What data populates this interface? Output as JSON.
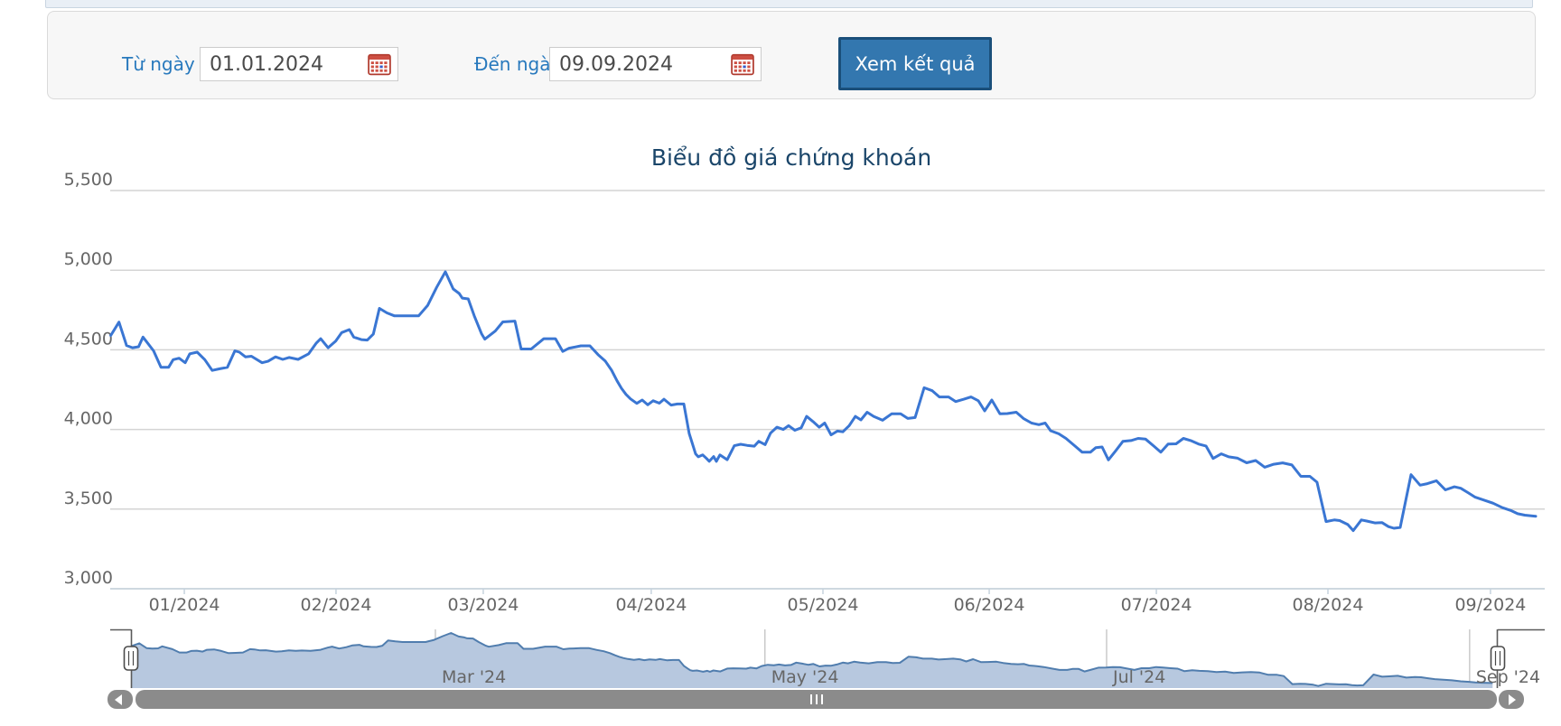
{
  "form": {
    "from_label": "Từ ngày",
    "from_value": "01.01.2024",
    "to_label": "Đến ngày",
    "to_value": "09.09.2024",
    "submit_label": "Xem kết quả"
  },
  "icons": {
    "calendar": "calendar-icon",
    "scroll_left_arrow": "left-arrow-icon",
    "scroll_right_arrow": "right-arrow-icon",
    "thumb_grip": "grip-icon",
    "navigator_handle": "drag-handle-icon"
  },
  "colors": {
    "label_blue": "#2879bd",
    "button_bg": "#3377af",
    "button_border": "#1a4f7a",
    "title": "#1a4569",
    "grid": "#d4d4d4",
    "axis_line": "#c6d3de",
    "axis_text": "#666666",
    "series_line": "#3a76d3",
    "navigator_fill": "#b7c8df",
    "navigator_line": "#507dae",
    "navigator_outline": "#5a5a5a",
    "scrollbar": "#8b8b8b"
  },
  "chart_data": {
    "type": "line",
    "title": "Biểu đồ giá chứng khoán",
    "xlabel": "",
    "ylabel": "",
    "ylim": [
      3000,
      5500
    ],
    "grid": true,
    "legend": "none",
    "y_ticks": [
      5500,
      5000,
      4500,
      4000,
      3500,
      3000
    ],
    "x_ticks": [
      {
        "label": "01/2024",
        "f": 0.0518
      },
      {
        "label": "02/2024",
        "f": 0.1578
      },
      {
        "label": "03/2024",
        "f": 0.2607
      },
      {
        "label": "04/2024",
        "f": 0.3781
      },
      {
        "label": "05/2024",
        "f": 0.4981
      },
      {
        "label": "06/2024",
        "f": 0.6143
      },
      {
        "label": "07/2024",
        "f": 0.7311
      },
      {
        "label": "08/2024",
        "f": 0.851
      },
      {
        "label": "09/2024",
        "f": 0.9646
      }
    ],
    "navigator": {
      "ticks": [
        {
          "label": "Mar '24",
          "f": 0.2227
        },
        {
          "label": "May '24",
          "f": 0.4638
        },
        {
          "label": "Jul '24",
          "f": 0.7138
        },
        {
          "label": "Sep '24",
          "f": 0.9794
        }
      ],
      "vlim": [
        3300,
        5100
      ]
    },
    "series": [
      {
        "name": "Giá chứng khoán",
        "points": [
          [
            0.0004,
            4590
          ],
          [
            0.0061,
            4674
          ],
          [
            0.0114,
            4527
          ],
          [
            0.0156,
            4513
          ],
          [
            0.0198,
            4519
          ],
          [
            0.0229,
            4580
          ],
          [
            0.0303,
            4494
          ],
          [
            0.0355,
            4390
          ],
          [
            0.0408,
            4390
          ],
          [
            0.044,
            4438
          ],
          [
            0.0482,
            4447
          ],
          [
            0.0524,
            4419
          ],
          [
            0.0556,
            4475
          ],
          [
            0.0608,
            4485
          ],
          [
            0.0661,
            4438
          ],
          [
            0.0713,
            4371
          ],
          [
            0.0766,
            4381
          ],
          [
            0.0819,
            4390
          ],
          [
            0.0871,
            4494
          ],
          [
            0.0903,
            4485
          ],
          [
            0.0945,
            4456
          ],
          [
            0.0987,
            4460
          ],
          [
            0.1061,
            4419
          ],
          [
            0.1103,
            4428
          ],
          [
            0.1155,
            4456
          ],
          [
            0.1206,
            4440
          ],
          [
            0.125,
            4452
          ],
          [
            0.1313,
            4440
          ],
          [
            0.1387,
            4475
          ],
          [
            0.1439,
            4541
          ],
          [
            0.1471,
            4570
          ],
          [
            0.1523,
            4513
          ],
          [
            0.1576,
            4555
          ],
          [
            0.1618,
            4608
          ],
          [
            0.1671,
            4627
          ],
          [
            0.1702,
            4580
          ],
          [
            0.1755,
            4564
          ],
          [
            0.1797,
            4561
          ],
          [
            0.1839,
            4599
          ],
          [
            0.1881,
            4760
          ],
          [
            0.1934,
            4732
          ],
          [
            0.1987,
            4713
          ],
          [
            0.2039,
            4713
          ],
          [
            0.2091,
            4713
          ],
          [
            0.2155,
            4713
          ],
          [
            0.2218,
            4778
          ],
          [
            0.2281,
            4892
          ],
          [
            0.2342,
            4990
          ],
          [
            0.2397,
            4882
          ],
          [
            0.2439,
            4854
          ],
          [
            0.246,
            4825
          ],
          [
            0.2502,
            4820
          ],
          [
            0.2544,
            4713
          ],
          [
            0.2596,
            4599
          ],
          [
            0.2618,
            4567
          ],
          [
            0.2691,
            4618
          ],
          [
            0.2744,
            4675
          ],
          [
            0.2828,
            4680
          ],
          [
            0.2872,
            4505
          ],
          [
            0.2942,
            4505
          ],
          [
            0.303,
            4570
          ],
          [
            0.3112,
            4570
          ],
          [
            0.3163,
            4490
          ],
          [
            0.3207,
            4510
          ],
          [
            0.3289,
            4525
          ],
          [
            0.3352,
            4525
          ],
          [
            0.3409,
            4470
          ],
          [
            0.3459,
            4430
          ],
          [
            0.3504,
            4372
          ],
          [
            0.3542,
            4305
          ],
          [
            0.3573,
            4258
          ],
          [
            0.3605,
            4220
          ],
          [
            0.3636,
            4192
          ],
          [
            0.368,
            4164
          ],
          [
            0.3718,
            4185
          ],
          [
            0.3756,
            4155
          ],
          [
            0.3794,
            4180
          ],
          [
            0.3838,
            4165
          ],
          [
            0.387,
            4190
          ],
          [
            0.392,
            4153
          ],
          [
            0.3964,
            4160
          ],
          [
            0.4009,
            4160
          ],
          [
            0.4046,
            3975
          ],
          [
            0.4091,
            3847
          ],
          [
            0.411,
            3828
          ],
          [
            0.4141,
            3840
          ],
          [
            0.4167,
            3818
          ],
          [
            0.4186,
            3800
          ],
          [
            0.4217,
            3830
          ],
          [
            0.4236,
            3800
          ],
          [
            0.4261,
            3840
          ],
          [
            0.4312,
            3810
          ],
          [
            0.4362,
            3898
          ],
          [
            0.4406,
            3907
          ],
          [
            0.445,
            3900
          ],
          [
            0.4501,
            3895
          ],
          [
            0.4532,
            3926
          ],
          [
            0.4577,
            3905
          ],
          [
            0.4614,
            3977
          ],
          [
            0.4659,
            4014
          ],
          [
            0.4703,
            4000
          ],
          [
            0.4741,
            4024
          ],
          [
            0.4785,
            3995
          ],
          [
            0.4829,
            4010
          ],
          [
            0.4867,
            4082
          ],
          [
            0.4911,
            4050
          ],
          [
            0.4955,
            4014
          ],
          [
            0.4993,
            4040
          ],
          [
            0.5038,
            3966
          ],
          [
            0.5082,
            3990
          ],
          [
            0.512,
            3985
          ],
          [
            0.5164,
            4024
          ],
          [
            0.5208,
            4082
          ],
          [
            0.5246,
            4060
          ],
          [
            0.529,
            4108
          ],
          [
            0.5335,
            4082
          ],
          [
            0.5398,
            4058
          ],
          [
            0.5461,
            4098
          ],
          [
            0.5524,
            4098
          ],
          [
            0.5574,
            4069
          ],
          [
            0.5625,
            4075
          ],
          [
            0.5688,
            4262
          ],
          [
            0.5745,
            4243
          ],
          [
            0.5795,
            4204
          ],
          [
            0.5859,
            4204
          ],
          [
            0.5909,
            4175
          ],
          [
            0.5966,
            4190
          ],
          [
            0.6016,
            4204
          ],
          [
            0.6067,
            4180
          ],
          [
            0.6111,
            4117
          ],
          [
            0.6161,
            4185
          ],
          [
            0.6218,
            4098
          ],
          [
            0.6269,
            4100
          ],
          [
            0.6332,
            4108
          ],
          [
            0.6382,
            4069
          ],
          [
            0.6439,
            4040
          ],
          [
            0.649,
            4030
          ],
          [
            0.6534,
            4040
          ],
          [
            0.6572,
            3992
          ],
          [
            0.6629,
            3973
          ],
          [
            0.6679,
            3944
          ],
          [
            0.6742,
            3896
          ],
          [
            0.6793,
            3857
          ],
          [
            0.685,
            3857
          ],
          [
            0.6888,
            3886
          ],
          [
            0.6932,
            3890
          ],
          [
            0.6976,
            3809
          ],
          [
            0.7026,
            3865
          ],
          [
            0.7077,
            3925
          ],
          [
            0.7134,
            3930
          ],
          [
            0.7184,
            3944
          ],
          [
            0.7235,
            3940
          ],
          [
            0.7292,
            3896
          ],
          [
            0.7342,
            3857
          ],
          [
            0.7393,
            3908
          ],
          [
            0.7449,
            3910
          ],
          [
            0.75,
            3944
          ],
          [
            0.7551,
            3930
          ],
          [
            0.7607,
            3908
          ],
          [
            0.7658,
            3896
          ],
          [
            0.7708,
            3818
          ],
          [
            0.7765,
            3847
          ],
          [
            0.7816,
            3828
          ],
          [
            0.7879,
            3820
          ],
          [
            0.7942,
            3791
          ],
          [
            0.8005,
            3805
          ],
          [
            0.8068,
            3763
          ],
          [
            0.8131,
            3782
          ],
          [
            0.8194,
            3790
          ],
          [
            0.8258,
            3777
          ],
          [
            0.8321,
            3706
          ],
          [
            0.8384,
            3706
          ],
          [
            0.8434,
            3669
          ],
          [
            0.8497,
            3422
          ],
          [
            0.8554,
            3432
          ],
          [
            0.8592,
            3428
          ],
          [
            0.8649,
            3403
          ],
          [
            0.8687,
            3365
          ],
          [
            0.8744,
            3432
          ],
          [
            0.8781,
            3425
          ],
          [
            0.8838,
            3413
          ],
          [
            0.8889,
            3415
          ],
          [
            0.8933,
            3390
          ],
          [
            0.8971,
            3380
          ],
          [
            0.9015,
            3385
          ],
          [
            0.9091,
            3716
          ],
          [
            0.9154,
            3650
          ],
          [
            0.9205,
            3660
          ],
          [
            0.9268,
            3678
          ],
          [
            0.9331,
            3621
          ],
          [
            0.9394,
            3640
          ],
          [
            0.9438,
            3631
          ],
          [
            0.9489,
            3603
          ],
          [
            0.9539,
            3575
          ],
          [
            0.9602,
            3556
          ],
          [
            0.9665,
            3537
          ],
          [
            0.9729,
            3509
          ],
          [
            0.9792,
            3490
          ],
          [
            0.9836,
            3471
          ],
          [
            0.9886,
            3462
          ],
          [
            0.9931,
            3458
          ],
          [
            0.9962,
            3455
          ]
        ]
      }
    ]
  }
}
